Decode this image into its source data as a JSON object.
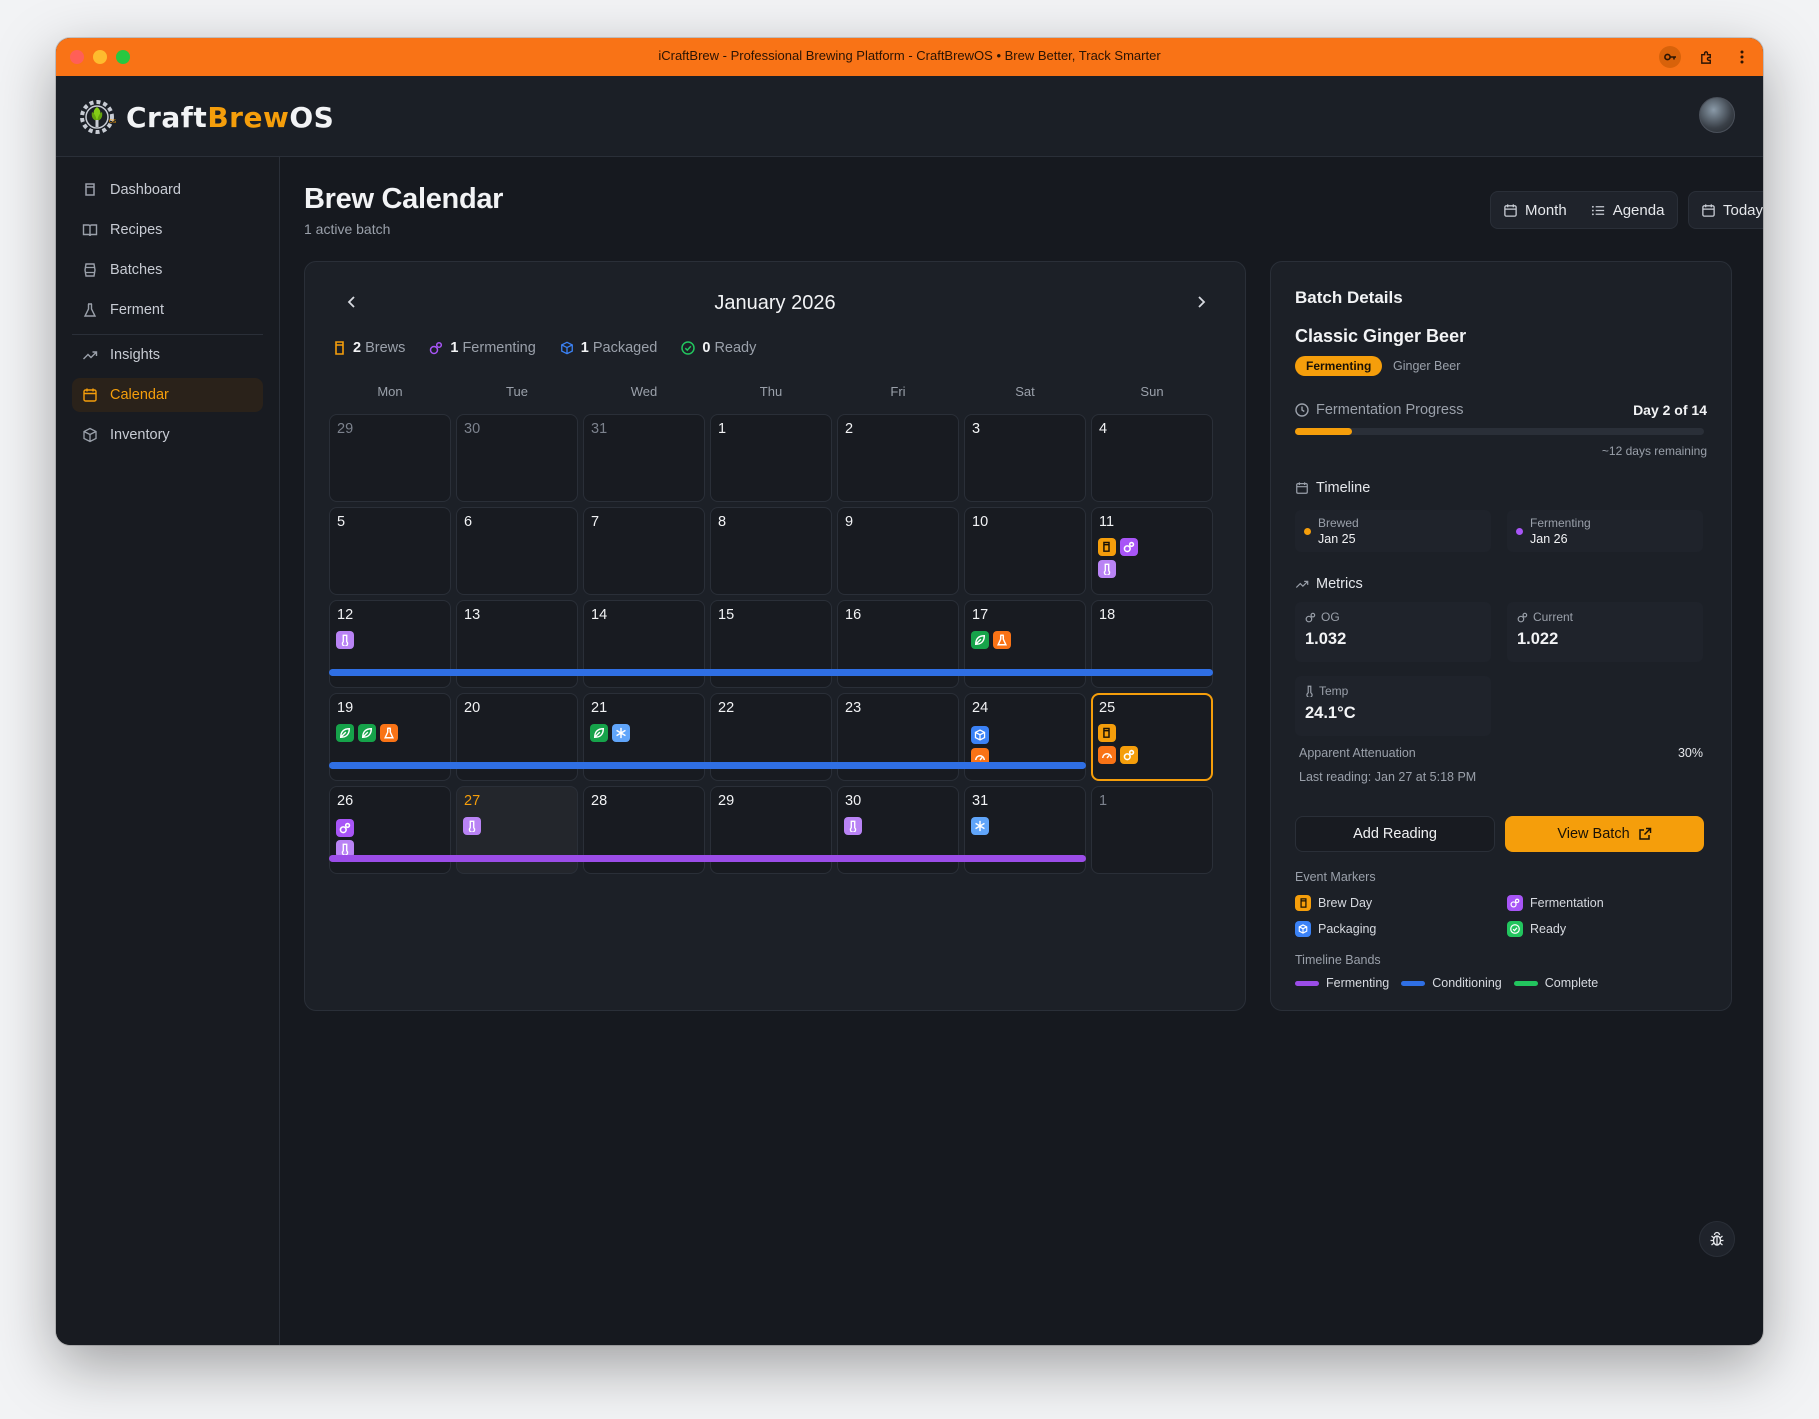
{
  "window": {
    "title": "iCraftBrew - Professional Brewing Platform - CraftBrewOS • Brew Better, Track Smarter"
  },
  "brand": {
    "part1": "Craft",
    "part2": "Brew",
    "part3": "OS"
  },
  "sidebar": {
    "items": [
      {
        "label": "Dashboard",
        "icon": "glass-icon"
      },
      {
        "label": "Recipes",
        "icon": "book-icon"
      },
      {
        "label": "Batches",
        "icon": "barrel-icon"
      },
      {
        "label": "Ferment",
        "icon": "flask-icon"
      },
      {
        "label": "Insights",
        "icon": "trend-icon"
      },
      {
        "label": "Calendar",
        "icon": "calendar-icon"
      },
      {
        "label": "Inventory",
        "icon": "box-icon"
      }
    ]
  },
  "page": {
    "title": "Brew Calendar",
    "subtitle": "1 active batch",
    "view_month": "Month",
    "view_agenda": "Agenda",
    "today_button": "Today"
  },
  "calendar": {
    "month_label": "January 2026",
    "stats": [
      {
        "count": "2",
        "label": "Brews",
        "color": "#f59e0b"
      },
      {
        "count": "1",
        "label": "Fermenting",
        "color": "#a855f7"
      },
      {
        "count": "1",
        "label": "Packaged",
        "color": "#3b82f6"
      },
      {
        "count": "0",
        "label": "Ready",
        "color": "#22c55e"
      }
    ],
    "weekdays": [
      "Mon",
      "Tue",
      "Wed",
      "Thu",
      "Fri",
      "Sat",
      "Sun"
    ],
    "weeks": [
      [
        "29",
        "30",
        "31",
        "1",
        "2",
        "3",
        "4"
      ],
      [
        "5",
        "6",
        "7",
        "8",
        "9",
        "10",
        "11"
      ],
      [
        "12",
        "13",
        "14",
        "15",
        "16",
        "17",
        "18"
      ],
      [
        "19",
        "20",
        "21",
        "22",
        "23",
        "24",
        "25"
      ],
      [
        "26",
        "27",
        "28",
        "29",
        "30",
        "31",
        "1"
      ]
    ]
  },
  "colors": {
    "brew": "#f59e0b",
    "fermentation": "#a855f7",
    "packaging": "#3b82f6",
    "ready": "#22c55e",
    "hop": "#16a34a",
    "gravity": "#f97316",
    "band_conditioning": "#2f6fe4",
    "band_fermenting": "#9b4de8",
    "band_complete": "#22c55e"
  },
  "batch": {
    "heading": "Batch Details",
    "name": "Classic Ginger Beer",
    "status": "Fermenting",
    "style": "Ginger Beer",
    "progress_label": "Fermentation Progress",
    "progress_value": "Day 2 of 14",
    "progress_fraction": 0.14,
    "remaining": "~12 days remaining",
    "timeline_label": "Timeline",
    "timeline": [
      {
        "label": "Brewed",
        "date": "Jan 25",
        "color": "#f59e0b"
      },
      {
        "label": "Fermenting",
        "date": "Jan 26",
        "color": "#a855f7"
      }
    ],
    "metrics_label": "Metrics",
    "og_label": "OG",
    "og_value": "1.032",
    "current_label": "Current",
    "current_value": "1.022",
    "temp_label": "Temp",
    "temp_value": "24.1°C",
    "attenuation_label": "Apparent Attenuation",
    "attenuation_value": "30%",
    "last_reading": "Last reading: Jan 27 at 5:18 PM",
    "add_reading": "Add Reading",
    "view_batch": "View Batch"
  },
  "legend": {
    "markers_title": "Event Markers",
    "markers": [
      "Brew Day",
      "Fermentation",
      "Packaging",
      "Ready"
    ],
    "bands_title": "Timeline Bands",
    "bands": [
      "Fermenting",
      "Conditioning",
      "Complete"
    ]
  }
}
